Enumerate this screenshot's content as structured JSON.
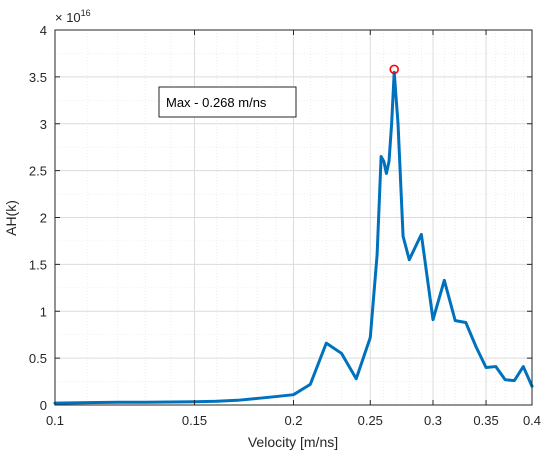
{
  "chart_data": {
    "type": "line",
    "xlabel": "Velocity [m/ns]",
    "ylabel": "AH(k)",
    "x_scale": "log",
    "xlim": [
      0.1,
      0.4
    ],
    "ylim": [
      0,
      4e+16
    ],
    "y_exponent_label": "× 10^16",
    "y_multiplier_base": "× 10",
    "y_multiplier_exp": "16",
    "grid": true,
    "minor_grid": true,
    "x_ticks": [
      {
        "value": 0.1,
        "label": "0.1"
      },
      {
        "value": 0.15,
        "label": "0.15"
      },
      {
        "value": 0.2,
        "label": "0.2"
      },
      {
        "value": 0.25,
        "label": "0.25"
      },
      {
        "value": 0.3,
        "label": "0.3"
      },
      {
        "value": 0.35,
        "label": "0.35"
      },
      {
        "value": 0.4,
        "label": "0.4"
      }
    ],
    "y_ticks": [
      {
        "value": 0,
        "label": "0"
      },
      {
        "value": 5000000000000000.0,
        "label": "0.5"
      },
      {
        "value": 1e+16,
        "label": "1"
      },
      {
        "value": 1.5e+16,
        "label": "1.5"
      },
      {
        "value": 2e+16,
        "label": "2"
      },
      {
        "value": 2.5e+16,
        "label": "2.5"
      },
      {
        "value": 3e+16,
        "label": "3"
      },
      {
        "value": 3.5e+16,
        "label": "3.5"
      },
      {
        "value": 4e+16,
        "label": "4"
      }
    ],
    "series": [
      {
        "color": "#0072BD",
        "points": [
          [
            0.1,
            200000000000000.0
          ],
          [
            0.11,
            250000000000000.0
          ],
          [
            0.12,
            300000000000000.0
          ],
          [
            0.13,
            300000000000000.0
          ],
          [
            0.14,
            320000000000000.0
          ],
          [
            0.15,
            350000000000000.0
          ],
          [
            0.16,
            400000000000000.0
          ],
          [
            0.17,
            500000000000000.0
          ],
          [
            0.18,
            700000000000000.0
          ],
          [
            0.19,
            900000000000000.0
          ],
          [
            0.2,
            1100000000000000.0
          ],
          [
            0.21,
            2200000000000000.0
          ],
          [
            0.22,
            6600000000000000.0
          ],
          [
            0.23,
            5500000000000000.0
          ],
          [
            0.24,
            2800000000000000.0
          ],
          [
            0.25,
            7200000000000000.0
          ],
          [
            0.255,
            1.6e+16
          ],
          [
            0.258,
            2.65e+16
          ],
          [
            0.26,
            2.6e+16
          ],
          [
            0.262,
            2.47e+16
          ],
          [
            0.264,
            2.6e+16
          ],
          [
            0.266,
            3e+16
          ],
          [
            0.268,
            3.55e+16
          ],
          [
            0.271,
            3e+16
          ],
          [
            0.275,
            1.8e+16
          ],
          [
            0.28,
            1.55e+16
          ],
          [
            0.29,
            1.82e+16
          ],
          [
            0.3,
            9100000000000000.0
          ],
          [
            0.31,
            1.33e+16
          ],
          [
            0.32,
            9000000000000000.0
          ],
          [
            0.33,
            8800000000000000.0
          ],
          [
            0.34,
            6200000000000000.0
          ],
          [
            0.35,
            4000000000000000.0
          ],
          [
            0.36,
            4100000000000000.0
          ],
          [
            0.37,
            2700000000000000.0
          ],
          [
            0.38,
            2600000000000000.0
          ],
          [
            0.39,
            4100000000000000.0
          ],
          [
            0.4,
            2000000000000000.0
          ]
        ]
      }
    ],
    "max_marker": {
      "x": 0.268,
      "y": 3.58e+16,
      "color": "#FF0000"
    },
    "annotation": {
      "text": "Max - 0.268 m/ns"
    }
  }
}
